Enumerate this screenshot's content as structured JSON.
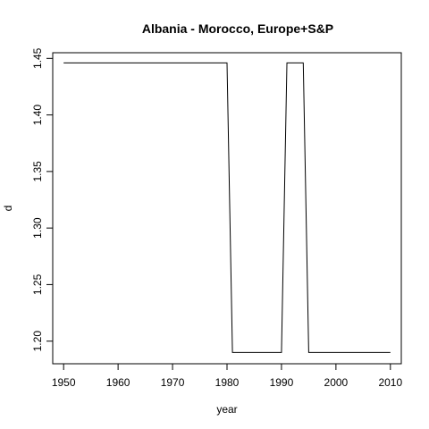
{
  "chart_data": {
    "type": "line",
    "title": "Albania - Morocco, Europe+S&P",
    "xlabel": "year",
    "ylabel": "d",
    "xlim": [
      1948,
      2012
    ],
    "ylim": [
      1.18,
      1.455
    ],
    "x_ticks": [
      1950,
      1960,
      1970,
      1980,
      1990,
      2000,
      2010
    ],
    "x_tick_labels": [
      "1950",
      "1960",
      "1970",
      "1980",
      "1990",
      "2000",
      "2010"
    ],
    "y_ticks": [
      1.2,
      1.25,
      1.3,
      1.35,
      1.4,
      1.45
    ],
    "y_tick_labels": [
      "1.20",
      "1.25",
      "1.30",
      "1.35",
      "1.40",
      "1.45"
    ],
    "grid": false,
    "series": [
      {
        "color": "#000000",
        "x": [
          1950,
          1980,
          1981,
          1990,
          1991,
          1994,
          1995,
          2010
        ],
        "y": [
          1.446,
          1.446,
          1.19,
          1.19,
          1.446,
          1.446,
          1.19,
          1.19
        ]
      }
    ]
  }
}
